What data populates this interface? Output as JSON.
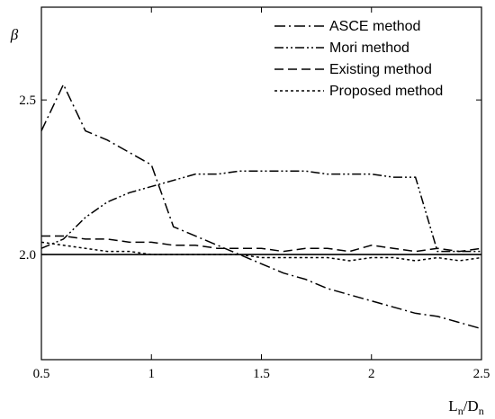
{
  "chart_data": {
    "type": "line",
    "xlabel": {
      "main": "L",
      "sub1": "n",
      "sep": "/D",
      "sub2": "n"
    },
    "ylabel": "β",
    "xlim": [
      0.5,
      2.5
    ],
    "ylim": [
      1.66,
      2.8
    ],
    "x_ticks": [
      0.5,
      1,
      1.5,
      2,
      2.5
    ],
    "x_tick_labels": [
      "0.5",
      "1",
      "1.5",
      "2",
      "2.5"
    ],
    "y_ticks": [
      2.0,
      2.5
    ],
    "y_tick_labels": [
      "2.0",
      "2.5"
    ],
    "grid": false,
    "legend_position": "top-right",
    "reference_line": 2.0,
    "series": [
      {
        "name": "ASCE method",
        "dash": "dash-dot",
        "x": [
          0.5,
          0.6,
          0.7,
          0.8,
          0.9,
          1.0,
          1.1,
          1.2,
          1.3,
          1.4,
          1.5,
          1.6,
          1.7,
          1.8,
          1.9,
          2.0,
          2.1,
          2.2,
          2.3,
          2.4,
          2.5
        ],
        "y": [
          2.4,
          2.55,
          2.4,
          2.37,
          2.33,
          2.29,
          2.09,
          2.06,
          2.03,
          2.0,
          1.97,
          1.94,
          1.92,
          1.89,
          1.87,
          1.85,
          1.83,
          1.81,
          1.8,
          1.78,
          1.76
        ]
      },
      {
        "name": "Mori method",
        "dash": "dash-dot-dot",
        "x": [
          0.5,
          0.6,
          0.7,
          0.8,
          0.9,
          1.0,
          1.1,
          1.2,
          1.3,
          1.4,
          1.5,
          1.6,
          1.7,
          1.8,
          1.9,
          2.0,
          2.1,
          2.2,
          2.3,
          2.4,
          2.5
        ],
        "y": [
          2.02,
          2.05,
          2.12,
          2.17,
          2.2,
          2.22,
          2.24,
          2.26,
          2.26,
          2.27,
          2.27,
          2.27,
          2.27,
          2.26,
          2.26,
          2.26,
          2.25,
          2.25,
          2.01,
          2.01,
          2.01
        ]
      },
      {
        "name": "Existing method",
        "dash": "dash",
        "x": [
          0.5,
          0.6,
          0.7,
          0.8,
          0.9,
          1.0,
          1.1,
          1.2,
          1.3,
          1.4,
          1.5,
          1.6,
          1.7,
          1.8,
          1.9,
          2.0,
          2.1,
          2.2,
          2.3,
          2.4,
          2.5
        ],
        "y": [
          2.06,
          2.06,
          2.05,
          2.05,
          2.04,
          2.04,
          2.03,
          2.03,
          2.02,
          2.02,
          2.02,
          2.01,
          2.02,
          2.02,
          2.01,
          2.03,
          2.02,
          2.01,
          2.02,
          2.01,
          2.02
        ]
      },
      {
        "name": "Proposed method",
        "dash": "dot",
        "x": [
          0.5,
          0.6,
          0.7,
          0.8,
          0.9,
          1.0,
          1.1,
          1.2,
          1.3,
          1.4,
          1.5,
          1.6,
          1.7,
          1.8,
          1.9,
          2.0,
          2.1,
          2.2,
          2.3,
          2.4,
          2.5
        ],
        "y": [
          2.04,
          2.03,
          2.02,
          2.01,
          2.01,
          2.0,
          2.0,
          2.0,
          2.0,
          2.0,
          1.99,
          1.99,
          1.99,
          1.99,
          1.98,
          1.99,
          1.99,
          1.98,
          1.99,
          1.98,
          1.99
        ]
      }
    ]
  }
}
